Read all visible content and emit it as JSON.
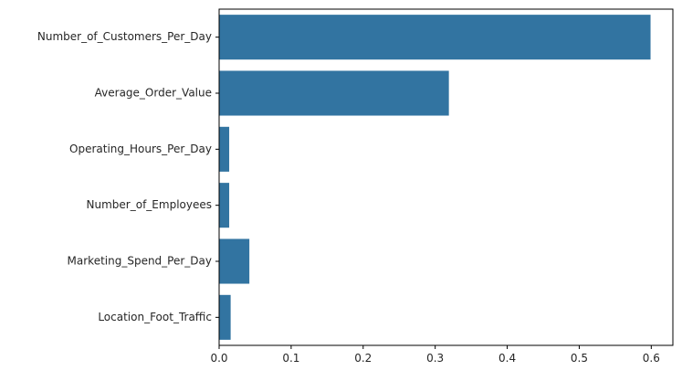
{
  "chart_data": {
    "type": "bar",
    "orientation": "horizontal",
    "categories": [
      "Number_of_Customers_Per_Day",
      "Average_Order_Value",
      "Operating_Hours_Per_Day",
      "Number_of_Employees",
      "Marketing_Spend_Per_Day",
      "Location_Foot_Traffic"
    ],
    "values": [
      0.599,
      0.319,
      0.014,
      0.014,
      0.042,
      0.016
    ],
    "xlim": [
      0,
      0.63
    ],
    "x_ticks": [
      0.0,
      0.1,
      0.2,
      0.3,
      0.4,
      0.5,
      0.6
    ],
    "x_tick_labels": [
      "0.0",
      "0.1",
      "0.2",
      "0.3",
      "0.4",
      "0.5",
      "0.6"
    ],
    "title": "",
    "xlabel": "",
    "ylabel": "",
    "bar_color": "#3274a1",
    "grid": false,
    "legend": "none"
  }
}
